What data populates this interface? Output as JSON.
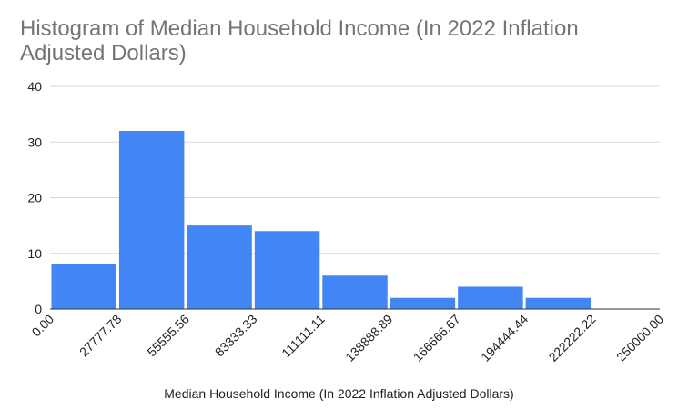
{
  "chart_data": {
    "type": "bar",
    "title": "Histogram of Median Household Income (In 2022 Inflation Adjusted Dollars)",
    "xlabel": "Median Household Income (In 2022 Inflation Adjusted Dollars)",
    "ylabel": "",
    "ylim": [
      0,
      40
    ],
    "y_ticks": [
      "0",
      "10",
      "20",
      "30",
      "40"
    ],
    "bin_edges": [
      0,
      27777.78,
      55555.56,
      83333.33,
      111111.11,
      138888.89,
      166666.67,
      194444.44,
      222222.22,
      250000.0
    ],
    "x_ticks": [
      "0.00",
      "27777.78",
      "55555.56",
      "83333.33",
      "111111.11",
      "138888.89",
      "166666.67",
      "194444.44",
      "222222.22",
      "250000.00"
    ],
    "values": [
      8,
      32,
      15,
      14,
      6,
      2,
      4,
      2,
      0
    ],
    "grid": true,
    "bar_color": "#4285f4"
  }
}
